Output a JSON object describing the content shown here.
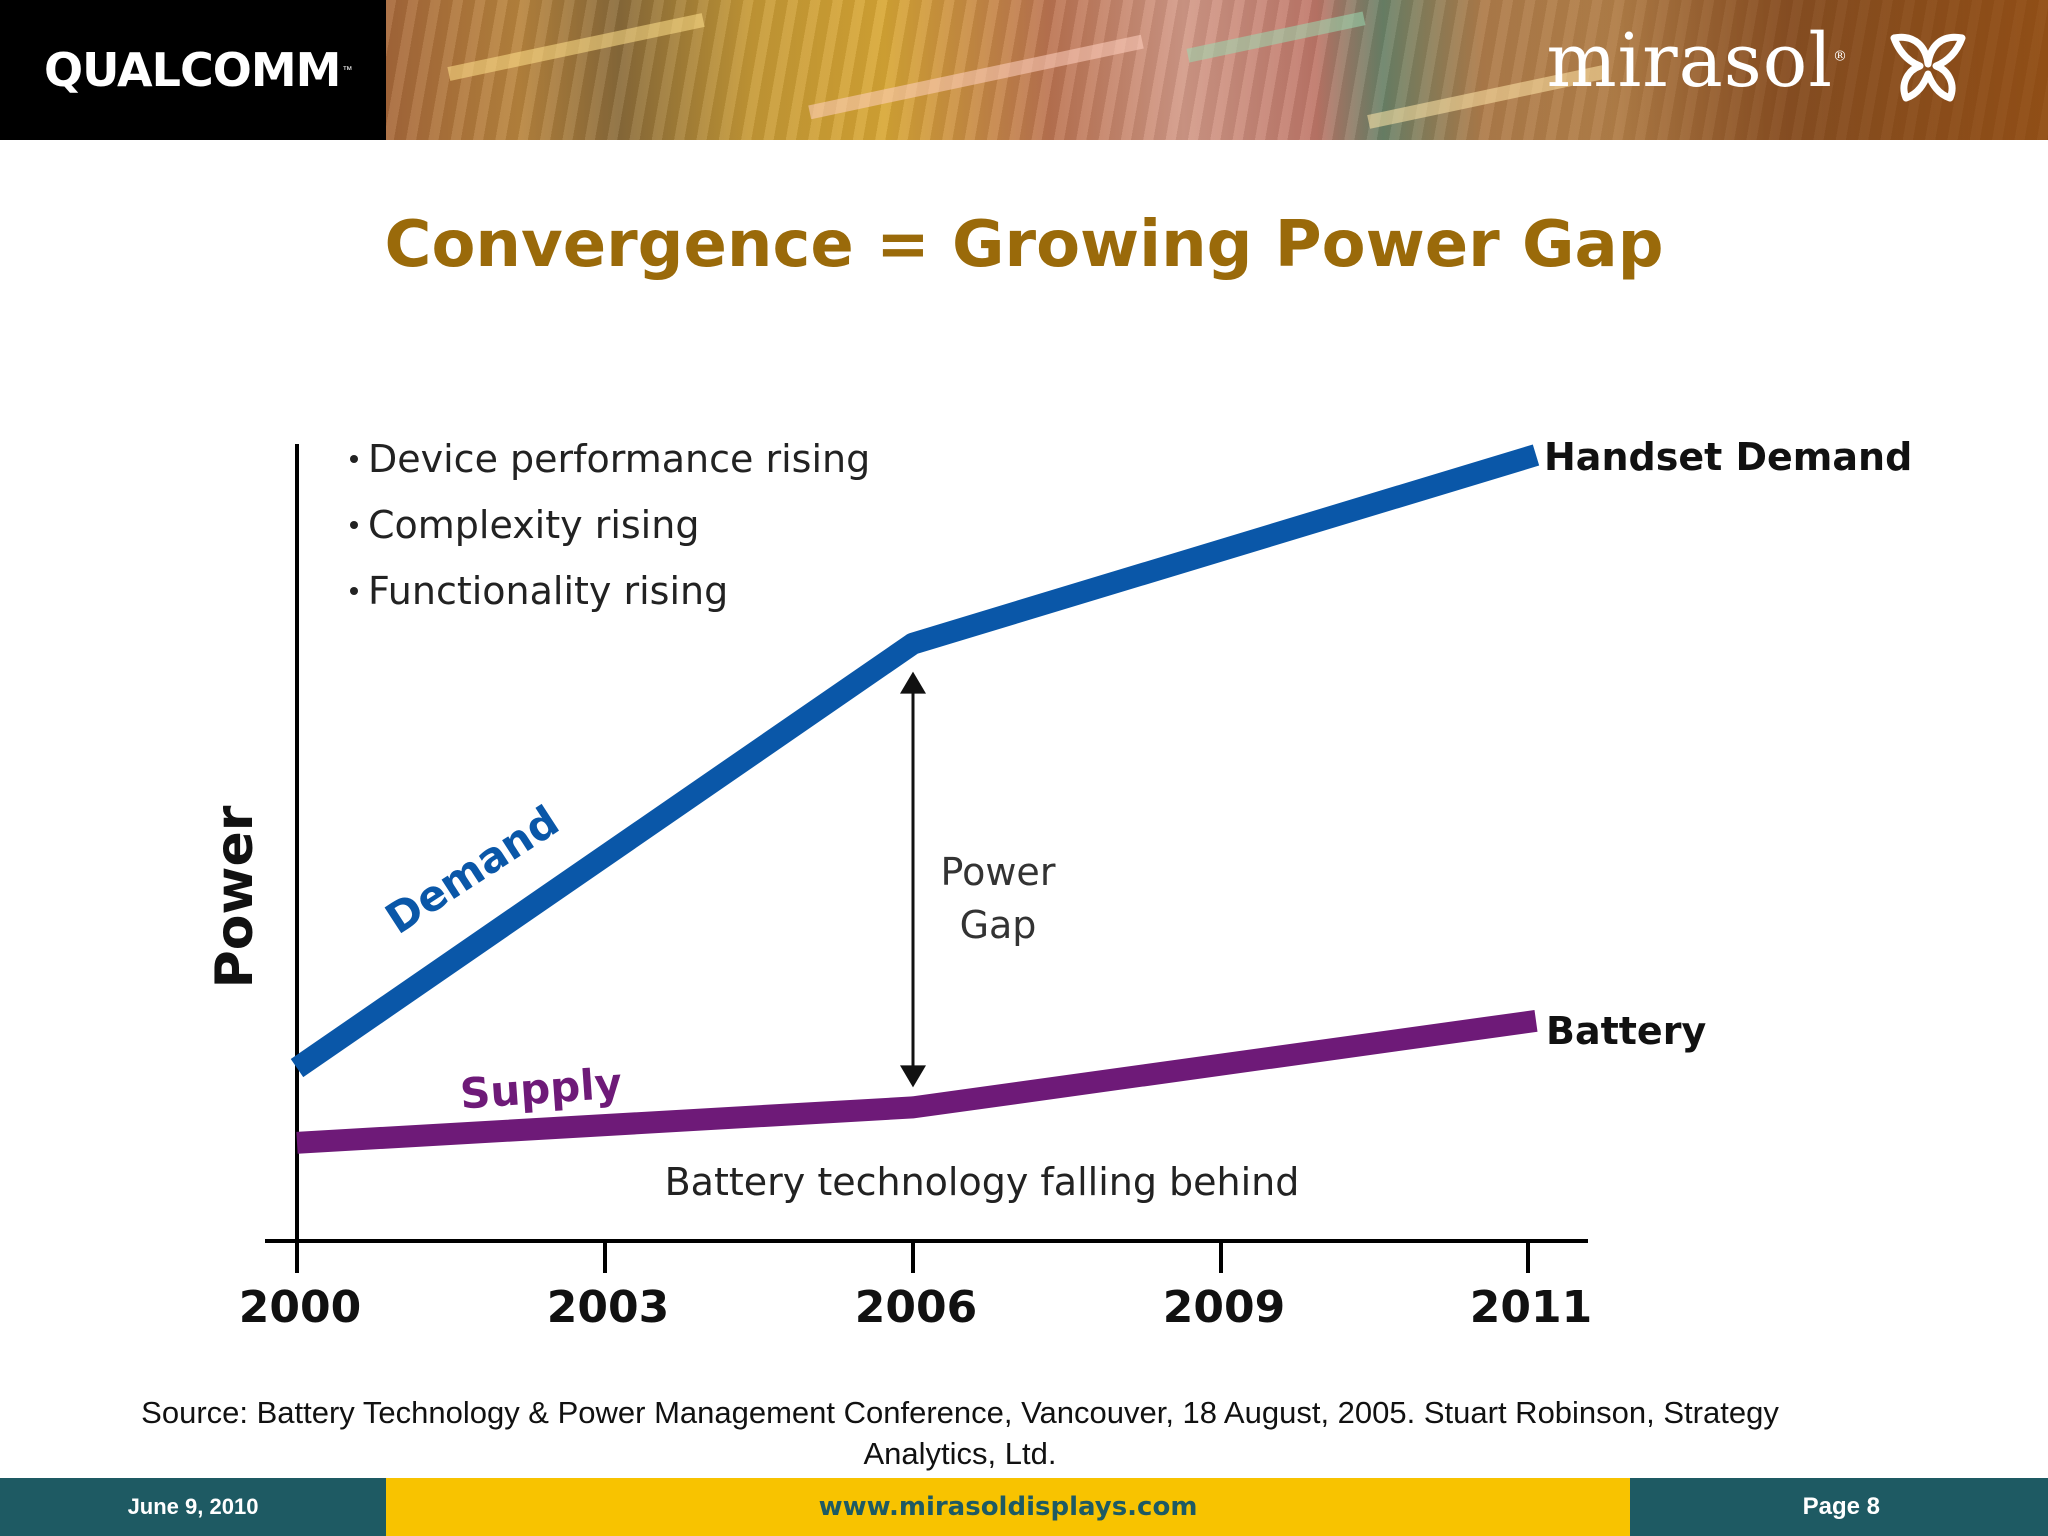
{
  "header": {
    "left_logo_text": "QUALCOMM",
    "right_logo_text": "mirasol",
    "colors": {
      "left_band": "#000000",
      "logo_text": "#ffffff"
    }
  },
  "slide": {
    "title": "Convergence = Growing Power Gap",
    "title_color": "#9a6a0a",
    "source_line1": "Source: Battery Technology & Power Management Conference, Vancouver, 18 August, 2005. Stuart Robinson, Strategy",
    "source_line2": "Analytics, Ltd."
  },
  "chart_data": {
    "type": "line",
    "x": [
      "2000",
      "2003",
      "2006",
      "2009",
      "2011"
    ],
    "ylabel": "Power",
    "grid": false,
    "y_axis_values_shown": false,
    "series": [
      {
        "name": "Demand",
        "end_label": "Handset Demand",
        "color": "#0a57a8",
        "points": [
          {
            "x": "2000",
            "y": 22
          },
          {
            "x": "2006",
            "y": 76
          },
          {
            "x": "2011",
            "y": 100
          }
        ]
      },
      {
        "name": "Supply",
        "end_label": "Battery",
        "color": "#6e1a78",
        "points": [
          {
            "x": "2000",
            "y": 12.5
          },
          {
            "x": "2006",
            "y": 17
          },
          {
            "x": "2011",
            "y": 28
          }
        ]
      }
    ],
    "bullets": [
      "Device performance rising",
      "Complexity rising",
      "Functionality rising"
    ],
    "annotations": {
      "gap_line1": "Power",
      "gap_line2": "Gap",
      "gap_at_x": "2006",
      "caption": "Battery technology falling behind"
    }
  },
  "footer": {
    "date": "June 9, 2010",
    "url": "www.mirasoldisplays.com",
    "page": "Page 8",
    "colors": {
      "band": "#1e5a63",
      "center": "#f8c300"
    }
  }
}
